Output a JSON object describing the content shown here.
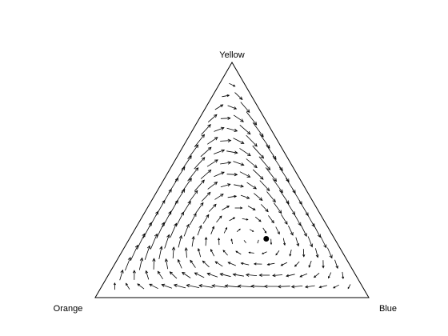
{
  "chart_data": {
    "type": "ternary-vector-field",
    "vertices": {
      "top": "Yellow",
      "left": "Orange",
      "right": "Blue"
    },
    "equilibrium": {
      "Yellow": 0.25,
      "Orange": 0.25,
      "Blue": 0.5
    },
    "field": "replicator dynamics; flow cycles around the interior equilibrium, strongest along the Orange-Yellow edge pointing toward Yellow",
    "grid": false,
    "legend": "none"
  },
  "colors": {
    "axes": "#000000",
    "arrows": "#000000",
    "background": "#ffffff"
  }
}
